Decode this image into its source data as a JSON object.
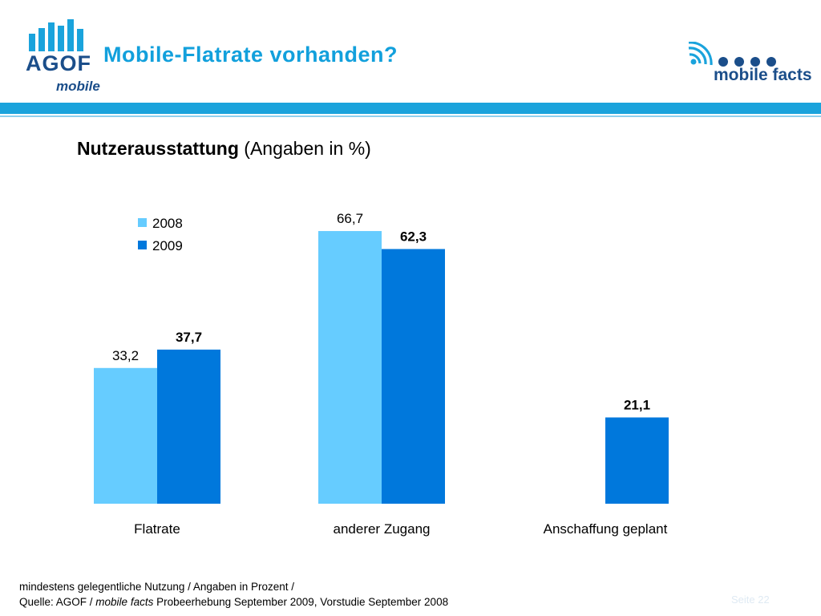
{
  "header": {
    "logo_word": "AGOF",
    "logo_sub": "mobile",
    "title": "Mobile-Flatrate vorhanden?",
    "brand_text": "mobile facts"
  },
  "subtitle": {
    "bold": "Nutzerausstattung",
    "rest": " (Angaben in %)"
  },
  "chart_data": {
    "type": "bar",
    "title": "",
    "categories": [
      "Flatrate",
      "anderer Zugang",
      "Anschaffung geplant"
    ],
    "series": [
      {
        "name": "2008",
        "values": [
          33.2,
          66.7,
          null
        ],
        "labels": [
          "33,2",
          "66,7",
          ""
        ],
        "color": "#66ccff",
        "bold_labels": false
      },
      {
        "name": "2009",
        "values": [
          37.7,
          62.3,
          21.1
        ],
        "labels": [
          "37,7",
          "62,3",
          "21,1"
        ],
        "color": "#0078dc",
        "bold_labels": true
      }
    ],
    "ylim": [
      0,
      70
    ],
    "grid": false,
    "legend": "top-left",
    "xlabel": "",
    "ylabel": ""
  },
  "footer": {
    "line1": "mindestens gelegentliche Nutzung / Angaben in Prozent /",
    "line2_prefix": "Quelle: AGOF / ",
    "line2_italic": "mobile facts",
    "line2_suffix": " Probeerhebung September 2009, Vorstudie September 2008",
    "page_label": "Seite 22"
  }
}
